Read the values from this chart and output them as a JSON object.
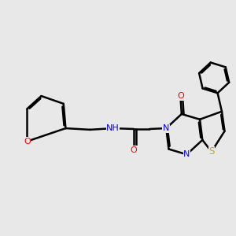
{
  "background_color": "#e8e8e8",
  "bond_color": "#000000",
  "bond_width": 1.8,
  "fig_width": 3.0,
  "fig_height": 3.0,
  "dpi": 100,
  "colors": {
    "C": "#000000",
    "N": "#0000ff",
    "O": "#ff0000",
    "S": "#ccaa00",
    "H": "#5f9ea0"
  }
}
